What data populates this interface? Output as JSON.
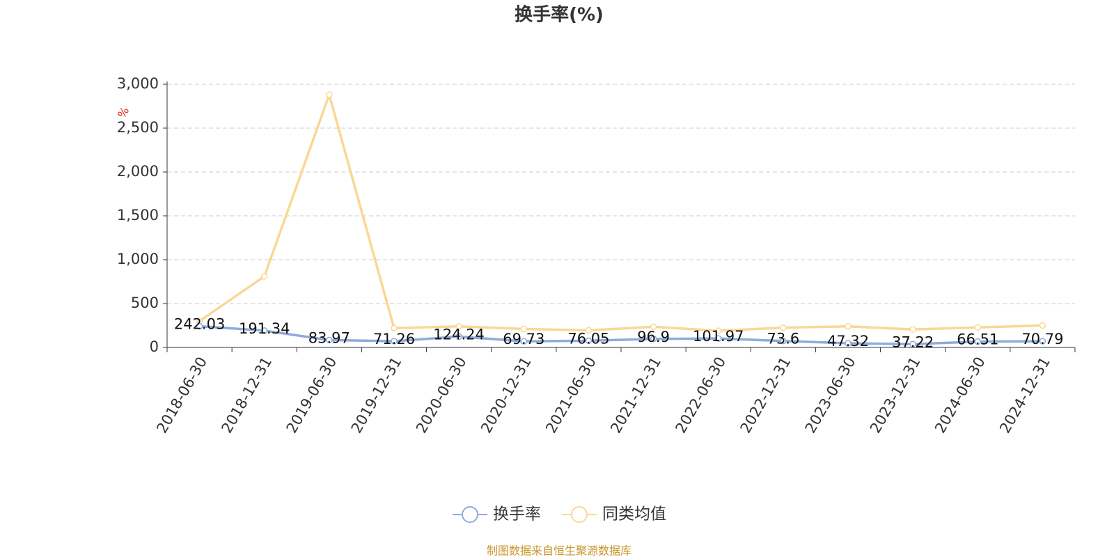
{
  "chart_data": {
    "type": "line",
    "title": "换手率(%)",
    "y_unit": "%",
    "categories": [
      "2018-06-30",
      "2018-12-31",
      "2019-06-30",
      "2019-12-31",
      "2020-06-30",
      "2020-12-31",
      "2021-06-30",
      "2021-12-31",
      "2022-06-30",
      "2022-12-31",
      "2023-06-30",
      "2023-12-31",
      "2024-06-30",
      "2024-12-31"
    ],
    "series": [
      {
        "name": "换手率",
        "color": "#8fabdc",
        "values": [
          242.03,
          191.34,
          83.97,
          71.26,
          124.24,
          69.73,
          76.05,
          96.9,
          101.97,
          73.6,
          47.32,
          37.22,
          66.51,
          70.79
        ],
        "data_labels": true
      },
      {
        "name": "同类均值",
        "color": "#fad795",
        "values": [
          300,
          810,
          2880,
          220,
          240,
          210,
          195,
          235,
          190,
          225,
          240,
          205,
          228,
          250
        ],
        "data_labels": false
      }
    ],
    "ylim": [
      0,
      3000
    ],
    "yticks": [
      0,
      500,
      {
        "value": 1000,
        "label": "1,000"
      },
      {
        "value": 1500,
        "label": "1,500"
      },
      {
        "value": 2000,
        "label": "2,000"
      },
      {
        "value": 2500,
        "label": "2,500"
      },
      {
        "value": 3000,
        "label": "3,000"
      }
    ],
    "grid": true,
    "legend": "bottom",
    "source": "制图数据来自恒生聚源数据库"
  }
}
